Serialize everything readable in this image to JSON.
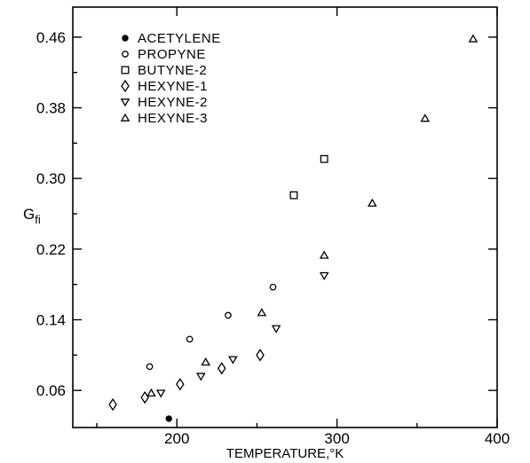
{
  "chart_data": {
    "type": "scatter",
    "xlabel": "TEMPERATURE,°K",
    "ylabel": "G",
    "ylabel_subscript": "fi",
    "xlim": [
      135,
      400
    ],
    "ylim": [
      0.018,
      0.494
    ],
    "x_ticks": [
      200,
      300,
      400
    ],
    "x_tick_labels": [
      "200",
      "300",
      "400"
    ],
    "y_ticks": [
      0.06,
      0.14,
      0.22,
      0.3,
      0.38,
      0.46
    ],
    "y_tick_labels": [
      "0.06",
      "0.14",
      "0.22",
      "0.30",
      "0.38",
      "0.46"
    ],
    "grid": false,
    "legend_position": "top-left",
    "series": [
      {
        "name": "ACETYLENE",
        "marker": "filled-circle",
        "x": [
          195
        ],
        "y": [
          0.028
        ]
      },
      {
        "name": "PROPYNE",
        "marker": "circle",
        "x": [
          183,
          208,
          232,
          260
        ],
        "y": [
          0.087,
          0.118,
          0.145,
          0.177
        ]
      },
      {
        "name": "BUTYNE-2",
        "marker": "square",
        "x": [
          273,
          292
        ],
        "y": [
          0.281,
          0.322
        ]
      },
      {
        "name": "HEXYNE-1",
        "marker": "diamond",
        "x": [
          160,
          180,
          202,
          228,
          252
        ],
        "y": [
          0.044,
          0.052,
          0.067,
          0.085,
          0.1
        ]
      },
      {
        "name": "HEXYNE-2",
        "marker": "triangle-down",
        "x": [
          190,
          215,
          235,
          262,
          292
        ],
        "y": [
          0.057,
          0.076,
          0.095,
          0.13,
          0.19
        ]
      },
      {
        "name": "HEXYNE-3",
        "marker": "triangle-up",
        "x": [
          184,
          218,
          253,
          292,
          322,
          355,
          385
        ],
        "y": [
          0.057,
          0.092,
          0.148,
          0.213,
          0.272,
          0.368,
          0.458
        ]
      }
    ]
  }
}
